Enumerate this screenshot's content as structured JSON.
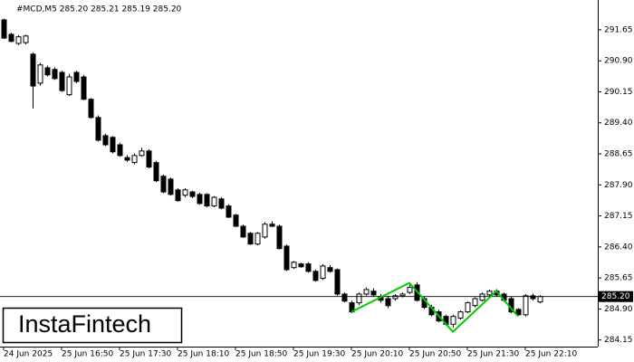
{
  "chart_data": {
    "type": "candlestick",
    "title": "#MCD,M5  285.20 285.21 285.19 285.20",
    "watermark": "InstaFintech",
    "categories": [
      "24 Jun 2025",
      null,
      null,
      null,
      null,
      null,
      null,
      null,
      "25 Jun 16:50",
      null,
      null,
      null,
      null,
      null,
      null,
      null,
      "25 Jun 17:30",
      null,
      null,
      null,
      null,
      null,
      null,
      null,
      "25 Jun 18:10",
      null,
      null,
      null,
      null,
      null,
      null,
      null,
      "25 Jun 18:50",
      null,
      null,
      null,
      null,
      null,
      null,
      null,
      "25 Jun 19:30",
      null,
      null,
      null,
      null,
      null,
      null,
      null,
      "25 Jun 20:10",
      null,
      null,
      null,
      null,
      null,
      null,
      null,
      "25 Jun 20:50",
      null,
      null,
      null,
      null,
      null,
      null,
      null,
      "25 Jun 21:30",
      null,
      null,
      null,
      null,
      null,
      null,
      null,
      "25 Jun 22:10",
      null,
      null
    ],
    "open": [
      291.89,
      291.54,
      291.32,
      291.34,
      291.06,
      290.36,
      290.73,
      290.69,
      290.62,
      290.08,
      290.62,
      290.51,
      289.97,
      289.53,
      289.09,
      289.05,
      288.87,
      288.56,
      288.44,
      288.61,
      288.72,
      288.44,
      288.11,
      288.04,
      287.78,
      287.65,
      287.73,
      287.67,
      287.67,
      287.39,
      287.56,
      287.39,
      287.17,
      286.9,
      286.73,
      286.47,
      286.64,
      286.95,
      286.9,
      286.42,
      285.9,
      285.99,
      285.99,
      285.81,
      285.64,
      285.9,
      285.85,
      285.26,
      285.05,
      285.05,
      285.26,
      285.33,
      285.2,
      285.15,
      285.15,
      285.22,
      285.3,
      285.48,
      285.15,
      284.94,
      284.83,
      284.72,
      284.53,
      284.68,
      284.83,
      284.98,
      285.11,
      285.24,
      285.33,
      285.26,
      285.15,
      284.89,
      284.76,
      285.22,
      285.07
    ],
    "high": [
      291.92,
      291.58,
      291.52,
      291.53,
      291.1,
      290.85,
      290.78,
      290.74,
      290.66,
      290.58,
      290.66,
      290.56,
      290.0,
      289.58,
      289.14,
      289.08,
      288.92,
      288.62,
      288.66,
      288.8,
      288.76,
      288.48,
      288.15,
      288.08,
      287.82,
      287.82,
      287.76,
      287.71,
      287.7,
      287.63,
      287.6,
      287.43,
      287.2,
      286.94,
      286.76,
      286.76,
      287.0,
      287.02,
      286.94,
      286.46,
      286.06,
      286.02,
      286.03,
      285.85,
      285.98,
      285.96,
      285.88,
      285.3,
      285.1,
      285.3,
      285.42,
      285.4,
      285.26,
      285.22,
      285.26,
      285.3,
      285.52,
      285.55,
      285.2,
      285.0,
      284.88,
      284.76,
      284.76,
      284.86,
      285.08,
      285.18,
      285.3,
      285.37,
      285.38,
      285.3,
      285.2,
      284.92,
      285.26,
      285.27,
      285.24
    ],
    "low": [
      291.43,
      291.35,
      291.28,
      291.3,
      289.75,
      290.3,
      290.52,
      290.44,
      290.15,
      290.05,
      290.36,
      289.95,
      289.5,
      288.95,
      288.84,
      288.66,
      288.58,
      288.46,
      288.4,
      288.58,
      288.3,
      287.97,
      287.7,
      287.64,
      287.49,
      287.6,
      287.58,
      287.42,
      287.36,
      287.36,
      287.31,
      287.1,
      286.88,
      286.62,
      286.45,
      286.44,
      286.6,
      286.88,
      286.34,
      285.82,
      285.87,
      285.9,
      285.78,
      285.56,
      285.6,
      285.78,
      285.22,
      285.06,
      284.8,
      285.0,
      285.22,
      285.2,
      285.05,
      284.92,
      285.1,
      285.18,
      285.26,
      285.08,
      284.9,
      284.72,
      284.58,
      284.5,
      284.45,
      284.64,
      284.8,
      284.94,
      285.08,
      285.2,
      285.2,
      285.07,
      284.8,
      284.74,
      284.72,
      285.1,
      285.04
    ],
    "close": [
      291.45,
      291.37,
      291.48,
      291.5,
      290.29,
      290.8,
      290.56,
      290.47,
      290.18,
      290.51,
      290.4,
      289.97,
      289.53,
      288.98,
      288.87,
      288.7,
      288.61,
      288.5,
      288.61,
      288.72,
      288.33,
      288.0,
      287.73,
      287.67,
      287.52,
      287.78,
      287.62,
      287.45,
      287.39,
      287.6,
      287.34,
      287.12,
      286.9,
      286.64,
      286.47,
      286.73,
      286.95,
      286.9,
      286.36,
      285.85,
      286.03,
      285.92,
      285.81,
      285.59,
      285.94,
      285.81,
      285.26,
      285.09,
      284.83,
      285.26,
      285.37,
      285.24,
      285.11,
      284.98,
      285.22,
      285.26,
      285.42,
      285.11,
      284.94,
      284.76,
      284.61,
      284.53,
      284.72,
      284.83,
      285.05,
      285.15,
      285.26,
      285.33,
      285.24,
      285.11,
      284.83,
      284.76,
      285.22,
      285.15,
      285.2
    ],
    "pattern": {
      "color": "#00cc00",
      "x": [
        48,
        56,
        62,
        68,
        71
      ],
      "y": [
        284.83,
        285.53,
        284.35,
        285.33,
        284.72
      ]
    },
    "last_price": {
      "value": 285.2,
      "label": "285.20"
    },
    "ylim": [
      283.99,
      292.37
    ],
    "yticks": [
      291.65,
      {
        "value": 290.9,
        "label": "290.90"
      },
      290.15,
      {
        "value": 289.4,
        "label": "289.40"
      },
      288.65,
      {
        "value": 287.9,
        "label": "287.90"
      },
      287.15,
      {
        "value": 286.4,
        "label": "286.40"
      },
      285.65,
      {
        "value": 284.9,
        "label": "284.90"
      },
      284.15
    ]
  }
}
